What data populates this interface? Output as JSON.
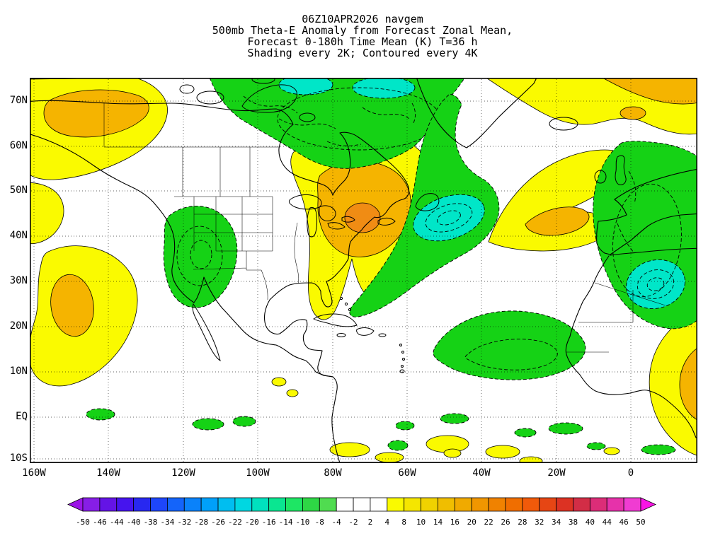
{
  "title": {
    "lines": [
      "06Z10APR2026 navgem",
      "500mb Theta-E Anomaly from Forecast Zonal Mean,",
      "Forecast 0-180h Time Mean (K) T=36 h",
      "Shading every 2K; Contoured every 4K"
    ]
  },
  "map": {
    "lat_labels": [
      "70N",
      "60N",
      "50N",
      "40N",
      "30N",
      "20N",
      "10N",
      "EQ",
      "10S"
    ],
    "lon_labels": [
      "160W",
      "140W",
      "120W",
      "100W",
      "80W",
      "60W",
      "40W",
      "20W",
      "0"
    ]
  },
  "colorbar": {
    "labels": [
      "-50",
      "-46",
      "-44",
      "-40",
      "-38",
      "-34",
      "-32",
      "-28",
      "-26",
      "-22",
      "-20",
      "-16",
      "-14",
      "-10",
      "-8",
      "-4",
      "-2",
      "2",
      "4",
      "8",
      "10",
      "14",
      "16",
      "20",
      "22",
      "26",
      "28",
      "32",
      "34",
      "38",
      "40",
      "44",
      "46",
      "50"
    ],
    "colors": [
      "#9b14e6",
      "#871ee6",
      "#6414e6",
      "#4614ee",
      "#2828f0",
      "#1e46fa",
      "#1464fa",
      "#0a82fa",
      "#00a0fa",
      "#00bef0",
      "#00d7e1",
      "#00e1be",
      "#0ae691",
      "#1ee664",
      "#2ed745",
      "#50dc50",
      "#ffffff",
      "#ffffff",
      "#ffffff",
      "#fafa00",
      "#f5e600",
      "#f0d200",
      "#f0be00",
      "#f0aa00",
      "#f09600",
      "#f08200",
      "#f06e00",
      "#f05a0a",
      "#e64614",
      "#dc3223",
      "#d22d46",
      "#dc2d78",
      "#e632aa",
      "#f03cd2",
      "#fa14e6"
    ]
  },
  "chart_data": {
    "type": "heatmap",
    "title": "500mb Theta-E Anomaly from Forecast Zonal Mean",
    "model": "navgem",
    "init_time": "06Z10APR2026",
    "forecast_period": "0-180h Time Mean",
    "tau": "36 h",
    "units": "K",
    "shading_interval_K": 2,
    "contour_interval_K": 4,
    "lat_ticks": [
      "70N",
      "60N",
      "50N",
      "40N",
      "30N",
      "20N",
      "10N",
      "EQ",
      "10S"
    ],
    "lon_ticks": [
      "160W",
      "140W",
      "120W",
      "100W",
      "80W",
      "60W",
      "40W",
      "20W",
      "0"
    ],
    "colorbar_range_K": [
      -50,
      50
    ],
    "fill_colors": {
      "positive_weak": "#fafa00",
      "positive_moderate": "#f5b400",
      "positive_strong": "#f08c14",
      "negative_weak": "#15d215",
      "negative_moderate": "#00e6c8"
    },
    "features": [
      {
        "sign": "positive",
        "location": "Alaska / Yukon / NE Pacific, 55-75N 130-165W",
        "est_peak_K": 10
      },
      {
        "sign": "negative",
        "location": "Canadian Arctic / Hudson Bay north, 55-75N 60-130W",
        "est_peak_K": -10
      },
      {
        "sign": "positive",
        "location": "Great Lakes / eastern North America, 30-60N 70-100W",
        "est_peak_K": 14
      },
      {
        "sign": "negative",
        "location": "Northwest Atlantic comma, ~45N 50W",
        "est_peak_K": -12
      },
      {
        "sign": "positive",
        "location": "Central Atlantic boomerang, 40-55N 0-40W",
        "est_peak_K": 10
      },
      {
        "sign": "negative",
        "location": "Western Europe / NW Africa / E Atlantic, 20-58N",
        "est_peak_K": -10
      },
      {
        "sign": "positive",
        "location": "Subtropical NE Pacific off Baja, 10-40N 140-160W",
        "est_peak_K": 8
      },
      {
        "sign": "negative",
        "location": "SW United States / Great Basin, ~38N 117W",
        "est_peak_K": -8
      },
      {
        "sign": "negative",
        "location": "Subtropical Atlantic, 10-23N 15-55W",
        "est_peak_K": -6
      },
      {
        "sign": "positive",
        "location": "West Africa / Sahel, 0-20N",
        "est_peak_K": 10
      }
    ]
  }
}
